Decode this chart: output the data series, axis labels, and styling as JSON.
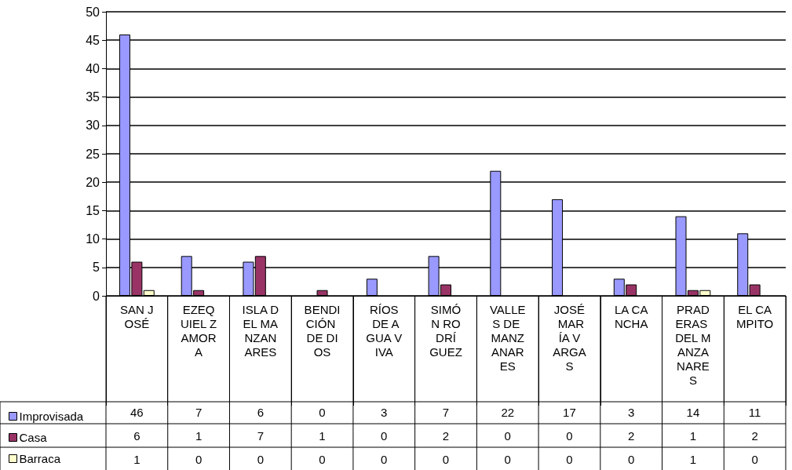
{
  "chart_data": {
    "type": "bar",
    "categories": [
      "SAN JOSÉ",
      "EZEQUIEL ZAMORA",
      "ISLA DEL MANZANARES",
      "BENDICIÓN DE DIOS",
      "RÍOS DE AGUA VIVA",
      "SIMÓN RODRÍGUEZ",
      "VALLES DE MANZANARES",
      "JOSÉ MARÍA VARGAS",
      "LA CANCHA",
      "PRADERAS DEL MANZANARES",
      "EL CAMPITO"
    ],
    "series": [
      {
        "name": "Improvisada",
        "color": "#9999ff",
        "values": [
          46,
          7,
          6,
          0,
          3,
          7,
          22,
          17,
          3,
          14,
          11
        ]
      },
      {
        "name": "Casa",
        "color": "#993366",
        "values": [
          6,
          1,
          7,
          1,
          0,
          2,
          0,
          0,
          2,
          1,
          2
        ]
      },
      {
        "name": "Barraca",
        "color": "#ffffcc",
        "values": [
          1,
          0,
          0,
          0,
          0,
          0,
          0,
          0,
          0,
          1,
          0
        ]
      }
    ],
    "ylim": [
      0,
      50
    ],
    "yticks": [
      0,
      5,
      10,
      15,
      20,
      25,
      30,
      35,
      40,
      45,
      50
    ],
    "grid": "y",
    "legend": "bottom left",
    "data_labels": true
  }
}
